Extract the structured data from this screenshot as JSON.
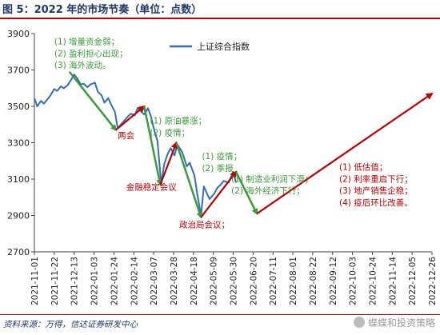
{
  "title": "图 5：2022 年的市场节奏（单位：点数）",
  "source": "资料来源：万得，信达证券研发中心",
  "watermark": "蝶蝶和投资策略",
  "colors": {
    "line": "#2f6fb8",
    "green": "#3a9b3a",
    "red": "#c00000",
    "title": "#1f3864"
  },
  "chart_data": {
    "type": "line",
    "ylim": [
      2700,
      3900
    ],
    "yticks": [
      2700,
      2900,
      3100,
      3300,
      3500,
      3700,
      3900
    ],
    "xlim": [
      "2021-11-01",
      "2022-12-26"
    ],
    "xticks": [
      "2021-11-01",
      "2021-11-22",
      "2021-12-13",
      "2022-01-03",
      "2022-01-24",
      "2022-02-14",
      "2022-03-07",
      "2022-03-28",
      "2022-04-18",
      "2022-05-09",
      "2022-05-30",
      "2022-06-20",
      "2022-07-11",
      "2022-08-01",
      "2022-08-22",
      "2022-09-12",
      "2022-10-03",
      "2022-10-24",
      "2022-11-14",
      "2022-12-05",
      "2022-12-26"
    ],
    "legend": {
      "label": "上证综合指数",
      "placement": "top-center"
    },
    "series": [
      {
        "name": "上证综合指数",
        "x": [
          "2021-11-01",
          "2021-11-04",
          "2021-11-08",
          "2021-11-11",
          "2021-11-15",
          "2021-11-18",
          "2021-11-22",
          "2021-11-25",
          "2021-11-29",
          "2021-12-02",
          "2021-12-06",
          "2021-12-09",
          "2021-12-13",
          "2021-12-16",
          "2021-12-20",
          "2021-12-23",
          "2021-12-27",
          "2021-12-30",
          "2022-01-04",
          "2022-01-07",
          "2022-01-11",
          "2022-01-14",
          "2022-01-18",
          "2022-01-21",
          "2022-01-25",
          "2022-01-28",
          "2022-02-08",
          "2022-02-11",
          "2022-02-15",
          "2022-02-18",
          "2022-02-22",
          "2022-02-25",
          "2022-03-01",
          "2022-03-04",
          "2022-03-08",
          "2022-03-11",
          "2022-03-15",
          "2022-03-18",
          "2022-03-22",
          "2022-03-25",
          "2022-03-29",
          "2022-04-01",
          "2022-04-06",
          "2022-04-11",
          "2022-04-14",
          "2022-04-19",
          "2022-04-22",
          "2022-04-26",
          "2022-04-29",
          "2022-05-05",
          "2022-05-10",
          "2022-05-13",
          "2022-05-17",
          "2022-05-20",
          "2022-05-25",
          "2022-05-30",
          "2022-06-02"
        ],
        "y": [
          3545,
          3500,
          3530,
          3515,
          3540,
          3560,
          3595,
          3585,
          3610,
          3600,
          3615,
          3640,
          3675,
          3655,
          3620,
          3625,
          3605,
          3620,
          3630,
          3580,
          3560,
          3520,
          3545,
          3510,
          3470,
          3380,
          3445,
          3460,
          3450,
          3490,
          3470,
          3455,
          3490,
          3445,
          3360,
          3310,
          3070,
          3180,
          3240,
          3270,
          3230,
          3290,
          3250,
          3170,
          3190,
          3120,
          3020,
          2900,
          3060,
          2990,
          3020,
          3050,
          3070,
          3090,
          3080,
          3140,
          3080
        ]
      }
    ],
    "segments": [
      {
        "type": "down",
        "from": [
          "2021-12-08",
          3690
        ],
        "to": [
          "2022-01-26",
          3370
        ]
      },
      {
        "type": "up",
        "from": [
          "2022-01-26",
          3370
        ],
        "to": [
          "2022-02-25",
          3500
        ]
      },
      {
        "type": "down",
        "from": [
          "2022-02-25",
          3500
        ],
        "to": [
          "2022-03-14",
          3070
        ]
      },
      {
        "type": "up",
        "from": [
          "2022-03-14",
          3070
        ],
        "to": [
          "2022-03-31",
          3300
        ]
      },
      {
        "type": "down",
        "from": [
          "2022-03-31",
          3300
        ],
        "to": [
          "2022-04-26",
          2890
        ]
      },
      {
        "type": "up",
        "from": [
          "2022-04-26",
          2890
        ],
        "to": [
          "2022-06-02",
          3140
        ]
      },
      {
        "type": "down",
        "from": [
          "2022-06-02",
          3140
        ],
        "to": [
          "2022-06-24",
          2910
        ]
      },
      {
        "type": "up",
        "from": [
          "2022-06-24",
          2910
        ],
        "to": [
          "2022-12-26",
          3570
        ]
      }
    ],
    "annotations": [
      {
        "color": "green",
        "text": "(1) 增量资金弱；",
        "at": [
          "2021-11-22",
          3840
        ]
      },
      {
        "color": "green",
        "text": "(2) 盈利担心出现；",
        "at": [
          "2021-11-22",
          3775
        ]
      },
      {
        "color": "green",
        "text": "(3) 海外波动。",
        "at": [
          "2021-11-22",
          3710
        ]
      },
      {
        "color": "red",
        "text": "两会",
        "at": [
          "2022-01-28",
          3325
        ]
      },
      {
        "color": "green",
        "text": "(1) 原油暴涨；",
        "at": [
          "2022-03-03",
          3405
        ]
      },
      {
        "color": "green",
        "text": "(2) 疫情；",
        "at": [
          "2022-03-03",
          3340
        ]
      },
      {
        "color": "red",
        "text": "金融稳定会议",
        "at": [
          "2022-02-06",
          3040
        ]
      },
      {
        "color": "green",
        "text": "(1) 疫情；",
        "at": [
          "2022-04-27",
          3210
        ]
      },
      {
        "color": "green",
        "text": "(2) 季报",
        "at": [
          "2022-04-27",
          3145
        ]
      },
      {
        "color": "green",
        "text": "(1) 制造业利润下滑；",
        "at": [
          "2022-05-28",
          3085
        ]
      },
      {
        "color": "green",
        "text": "(2) 海外经济下行；",
        "at": [
          "2022-05-28",
          3020
        ]
      },
      {
        "color": "red",
        "text": "政治局会议；",
        "at": [
          "2022-04-03",
          2835
        ]
      },
      {
        "color": "red",
        "text": "(1)  低估值；",
        "at": [
          "2022-09-19",
          3150
        ]
      },
      {
        "color": "red",
        "text": "(2)  利率重启下行；",
        "at": [
          "2022-09-19",
          3085
        ]
      },
      {
        "color": "red",
        "text": "(3)  地产销售企稳；",
        "at": [
          "2022-09-19",
          3020
        ]
      },
      {
        "color": "red",
        "text": "(4)  疫后环比改善。",
        "at": [
          "2022-09-19",
          2955
        ]
      }
    ]
  }
}
